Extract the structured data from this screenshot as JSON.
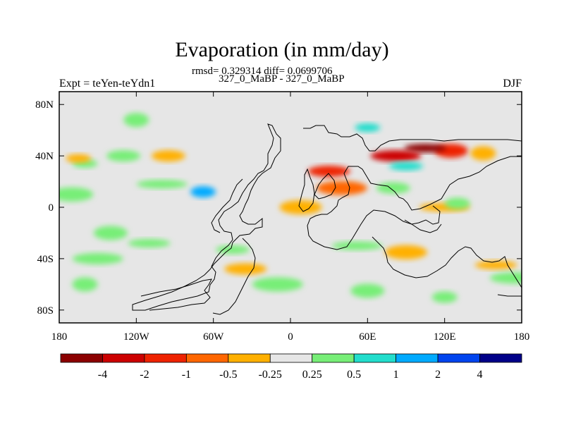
{
  "header": {
    "title": "Evaporation (in mm/day)",
    "stats": "rmsd= 0.329314 diff= 0.0699706",
    "left_label": "Expt = teYen-teYdn1",
    "run_label": "327_0_MaBP - 327_0_MaBP",
    "right_label": "DJF"
  },
  "colors": {
    "background_field": "#e6e6e6",
    "coastline": "#000000"
  },
  "chart_data": {
    "type": "heatmap",
    "title": "Evaporation (in mm/day)",
    "xlabel": "",
    "ylabel": "",
    "xlim": [
      -180,
      180
    ],
    "ylim": [
      -90,
      90
    ],
    "x_ticks": [
      {
        "value": -180,
        "label": "180"
      },
      {
        "value": -120,
        "label": "120W"
      },
      {
        "value": -60,
        "label": "60W"
      },
      {
        "value": 0,
        "label": "0"
      },
      {
        "value": 60,
        "label": "60E"
      },
      {
        "value": 120,
        "label": "120E"
      },
      {
        "value": 180,
        "label": "180"
      }
    ],
    "y_ticks": [
      {
        "value": 80,
        "label": "80N"
      },
      {
        "value": 40,
        "label": "40N"
      },
      {
        "value": 0,
        "label": "0"
      },
      {
        "value": -40,
        "label": "40S"
      },
      {
        "value": -80,
        "label": "80S"
      }
    ],
    "colorbar": {
      "labels": [
        "-4",
        "-2",
        "-1",
        "-0.5",
        "-0.25",
        "0.25",
        "0.5",
        "1",
        "2",
        "4"
      ],
      "colors": [
        "#8b0000",
        "#cc0000",
        "#ee2200",
        "#ff6600",
        "#ffb000",
        "#e6e6e6",
        "#77ee77",
        "#22ddcc",
        "#00aaff",
        "#0044ee",
        "#000088"
      ]
    },
    "features": [
      {
        "lon": -160,
        "lat": 34,
        "value": 0.3
      },
      {
        "lon": -130,
        "lat": 40,
        "value": 0.3
      },
      {
        "lon": -170,
        "lat": 10,
        "value": 0.3
      },
      {
        "lon": -100,
        "lat": 18,
        "value": 0.3
      },
      {
        "lon": -68,
        "lat": 12,
        "value": 1.2
      },
      {
        "lon": -140,
        "lat": -20,
        "value": 0.3
      },
      {
        "lon": -110,
        "lat": -28,
        "value": 0.3
      },
      {
        "lon": -150,
        "lat": -40,
        "value": 0.3
      },
      {
        "lon": -160,
        "lat": -60,
        "value": 0.3
      },
      {
        "lon": -45,
        "lat": -33,
        "value": 0.3
      },
      {
        "lon": -35,
        "lat": -48,
        "value": -0.3
      },
      {
        "lon": -10,
        "lat": -60,
        "value": 0.3
      },
      {
        "lon": -165,
        "lat": 38,
        "value": -0.3
      },
      {
        "lon": -95,
        "lat": 40,
        "value": -0.3
      },
      {
        "lon": 8,
        "lat": 0,
        "value": -0.4
      },
      {
        "lon": 120,
        "lat": 0,
        "value": -0.5
      },
      {
        "lon": 130,
        "lat": 3,
        "value": 0.3
      },
      {
        "lon": 125,
        "lat": 44,
        "value": -1.5
      },
      {
        "lon": 105,
        "lat": 46,
        "value": -4.5
      },
      {
        "lon": 82,
        "lat": 40,
        "value": -2.5
      },
      {
        "lon": 150,
        "lat": 42,
        "value": -0.3
      },
      {
        "lon": 90,
        "lat": 32,
        "value": 0.8
      },
      {
        "lon": 30,
        "lat": 28,
        "value": -1.2
      },
      {
        "lon": 40,
        "lat": 15,
        "value": -0.6
      },
      {
        "lon": 60,
        "lat": 62,
        "value": 0.8
      },
      {
        "lon": 80,
        "lat": 15,
        "value": 0.3
      },
      {
        "lon": 90,
        "lat": -35,
        "value": -0.5
      },
      {
        "lon": 52,
        "lat": -30,
        "value": 0.3
      },
      {
        "lon": 120,
        "lat": -70,
        "value": 0.4
      },
      {
        "lon": 60,
        "lat": -65,
        "value": 0.3
      },
      {
        "lon": 160,
        "lat": -45,
        "value": -0.4
      },
      {
        "lon": 175,
        "lat": -55,
        "value": 0.3
      },
      {
        "lon": -120,
        "lat": 68,
        "value": 0.3
      }
    ]
  }
}
